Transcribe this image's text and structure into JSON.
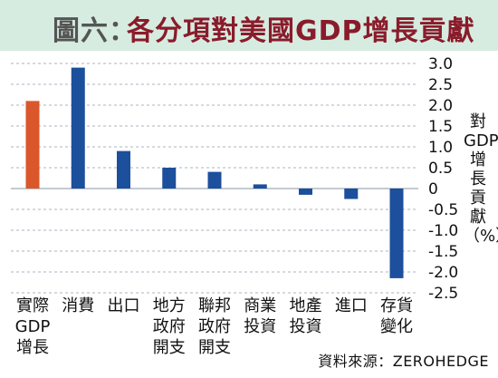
{
  "header": {
    "title_prefix": "圖六：",
    "title_main": "各分項對美國GDP增長貢獻"
  },
  "chart_data": {
    "type": "bar",
    "title": "圖六：各分項對美國GDP增長貢獻",
    "ylabel": "對GDP增長貢獻（%）",
    "xlabel": "",
    "ylim": [
      -2.5,
      3.0
    ],
    "yticks": [
      "3.0",
      "2.5",
      "2.0",
      "1.5",
      "1.0",
      "0.5",
      "0",
      "-0.5",
      "-1.0",
      "-1.5",
      "-2.0",
      "-2.5"
    ],
    "grid": true,
    "categories": [
      [
        "實際",
        "GDP",
        "增長"
      ],
      [
        "消費"
      ],
      [
        "出口"
      ],
      [
        "地方",
        "政府",
        "開支"
      ],
      [
        "聯邦",
        "政府",
        "開支"
      ],
      [
        "商業",
        "投資"
      ],
      [
        "地產",
        "投資"
      ],
      [
        "進口"
      ],
      [
        "存貨",
        "變化"
      ]
    ],
    "values": [
      2.1,
      2.9,
      0.9,
      0.5,
      0.4,
      0.1,
      -0.15,
      -0.25,
      -2.15
    ],
    "colors": [
      "#d9572a",
      "#1c4f9c",
      "#1c4f9c",
      "#1c4f9c",
      "#1c4f9c",
      "#1c4f9c",
      "#1c4f9c",
      "#1c4f9c",
      "#1c4f9c"
    ]
  },
  "footer": {
    "source": "資料來源：ZEROHEDGE"
  }
}
